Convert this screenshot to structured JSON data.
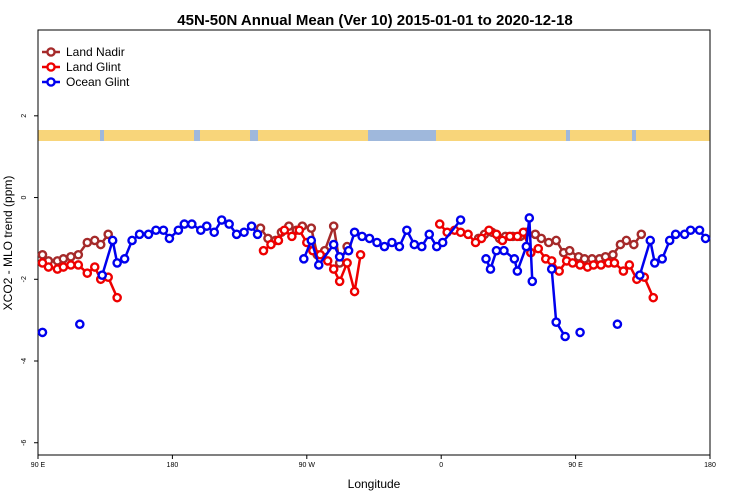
{
  "chart_data": {
    "type": "line",
    "title": "45N-50N Annual Mean (Ver 10)   2015-01-01 to 2020-12-18",
    "x_label": "Longitude",
    "y_label": "XCO2 - MLO trend (ppm)",
    "xlim": [
      90,
      540
    ],
    "xticks": [
      {
        "value": 90,
        "label": "90 E"
      },
      180,
      {
        "value": 270,
        "label": "90 W"
      },
      {
        "value": 360,
        "label": "0"
      },
      {
        "value": 450,
        "label": "90 E"
      },
      {
        "value": 540,
        "label": "180"
      }
    ],
    "ylim": [
      -6.3,
      4.1
    ],
    "yticks": [
      -6,
      -4,
      -2,
      0,
      2
    ],
    "legend": "top-left",
    "series": [
      {
        "name": "Land Nadir",
        "color": "#a52a2a",
        "x": [
          93,
          97,
          103,
          107,
          112,
          117,
          123,
          128,
          132,
          137,
          null,
          239,
          244,
          249,
          253,
          258,
          263,
          267,
          273,
          277,
          282,
          288,
          292,
          297,
          null,
          385,
          389,
          394,
          399,
          403,
          408,
          413,
          417,
          423,
          427,
          432,
          437,
          442,
          446,
          452,
          456,
          461,
          466,
          470,
          475,
          480,
          484,
          489,
          494
        ],
        "values": [
          -1.4,
          -1.55,
          -1.55,
          -1.5,
          -1.45,
          -1.4,
          -1.1,
          -1.05,
          -1.15,
          -0.9,
          null,
          -0.75,
          -1.0,
          -1.05,
          -0.85,
          -0.7,
          -0.8,
          -0.7,
          -0.75,
          -1.4,
          -1.3,
          -0.7,
          -1.6,
          -1.2,
          null,
          -1.0,
          -0.9,
          -0.85,
          -1.0,
          -0.95,
          -0.95,
          -0.95,
          -0.85,
          -0.9,
          -1.0,
          -1.1,
          -1.05,
          -1.35,
          -1.3,
          -1.45,
          -1.5,
          -1.5,
          -1.5,
          -1.45,
          -1.4,
          -1.15,
          -1.05,
          -1.15,
          -0.9
        ]
      },
      {
        "name": "Land Glint",
        "color": "#ee0000",
        "x": [
          93,
          97,
          103,
          107,
          112,
          117,
          123,
          128,
          132,
          137,
          143,
          null,
          241,
          246,
          251,
          255,
          260,
          265,
          270,
          274,
          279,
          284,
          288,
          292,
          297,
          302,
          306,
          null,
          359,
          364,
          369,
          373,
          378,
          383,
          387,
          392,
          397,
          401,
          406,
          411,
          415,
          420,
          425,
          430,
          434,
          439,
          444,
          448,
          453,
          458,
          462,
          467,
          472,
          476,
          482,
          486,
          491,
          496,
          502
        ],
        "values": [
          -1.6,
          -1.7,
          -1.75,
          -1.7,
          -1.65,
          -1.65,
          -1.85,
          -1.7,
          -2.0,
          -1.95,
          -2.45,
          null,
          -1.3,
          -1.15,
          -1.05,
          -0.8,
          -0.95,
          -0.8,
          -1.1,
          -1.3,
          -1.4,
          -1.55,
          -1.75,
          -2.05,
          -1.6,
          -2.3,
          -1.4,
          null,
          -0.65,
          -0.85,
          -0.8,
          -0.85,
          -0.9,
          -1.1,
          -1.0,
          -0.8,
          -0.9,
          -1.05,
          -0.95,
          -0.95,
          -0.85,
          -1.35,
          -1.25,
          -1.5,
          -1.55,
          -1.8,
          -1.55,
          -1.6,
          -1.65,
          -1.7,
          -1.65,
          -1.65,
          -1.6,
          -1.6,
          -1.8,
          -1.65,
          -2.0,
          -1.95,
          -2.45
        ]
      },
      {
        "name": "Ocean Glint",
        "color": "#0000ee",
        "x": [
          93,
          null,
          118,
          null,
          133,
          140,
          143,
          148,
          153,
          158,
          164,
          169,
          174,
          178,
          184,
          188,
          193,
          199,
          203,
          208,
          213,
          218,
          223,
          228,
          233,
          237,
          null,
          268,
          273,
          278,
          288,
          292,
          298,
          302,
          307,
          312,
          317,
          322,
          327,
          332,
          337,
          342,
          347,
          352,
          357,
          361,
          373,
          null,
          390,
          393,
          397,
          402,
          409,
          411,
          417,
          419,
          421,
          null,
          434,
          437,
          443,
          null,
          453,
          null,
          478,
          null,
          493,
          500,
          503,
          508,
          513,
          517,
          523,
          527,
          533,
          537
        ],
        "values": [
          -3.3,
          null,
          -3.1,
          null,
          -1.9,
          -1.05,
          -1.6,
          -1.5,
          -1.05,
          -0.9,
          -0.9,
          -0.8,
          -0.8,
          -1.0,
          -0.8,
          -0.65,
          -0.65,
          -0.8,
          -0.7,
          -0.85,
          -0.55,
          -0.65,
          -0.9,
          -0.85,
          -0.7,
          -0.9,
          null,
          -1.5,
          -1.05,
          -1.65,
          -1.15,
          -1.45,
          -1.3,
          -0.85,
          -0.95,
          -1.0,
          -1.1,
          -1.2,
          -1.1,
          -1.2,
          -0.8,
          -1.15,
          -1.2,
          -0.9,
          -1.2,
          -1.1,
          -0.55,
          null,
          -1.5,
          -1.75,
          -1.3,
          -1.3,
          -1.5,
          -1.8,
          -1.2,
          -0.5,
          -2.05,
          null,
          -1.75,
          -3.05,
          -3.4,
          null,
          -3.3,
          null,
          -3.1,
          null,
          -1.9,
          -1.05,
          -1.6,
          -1.5,
          -1.05,
          -0.9,
          -0.9,
          -0.8,
          -0.8,
          -1.0
        ]
      }
    ]
  }
}
